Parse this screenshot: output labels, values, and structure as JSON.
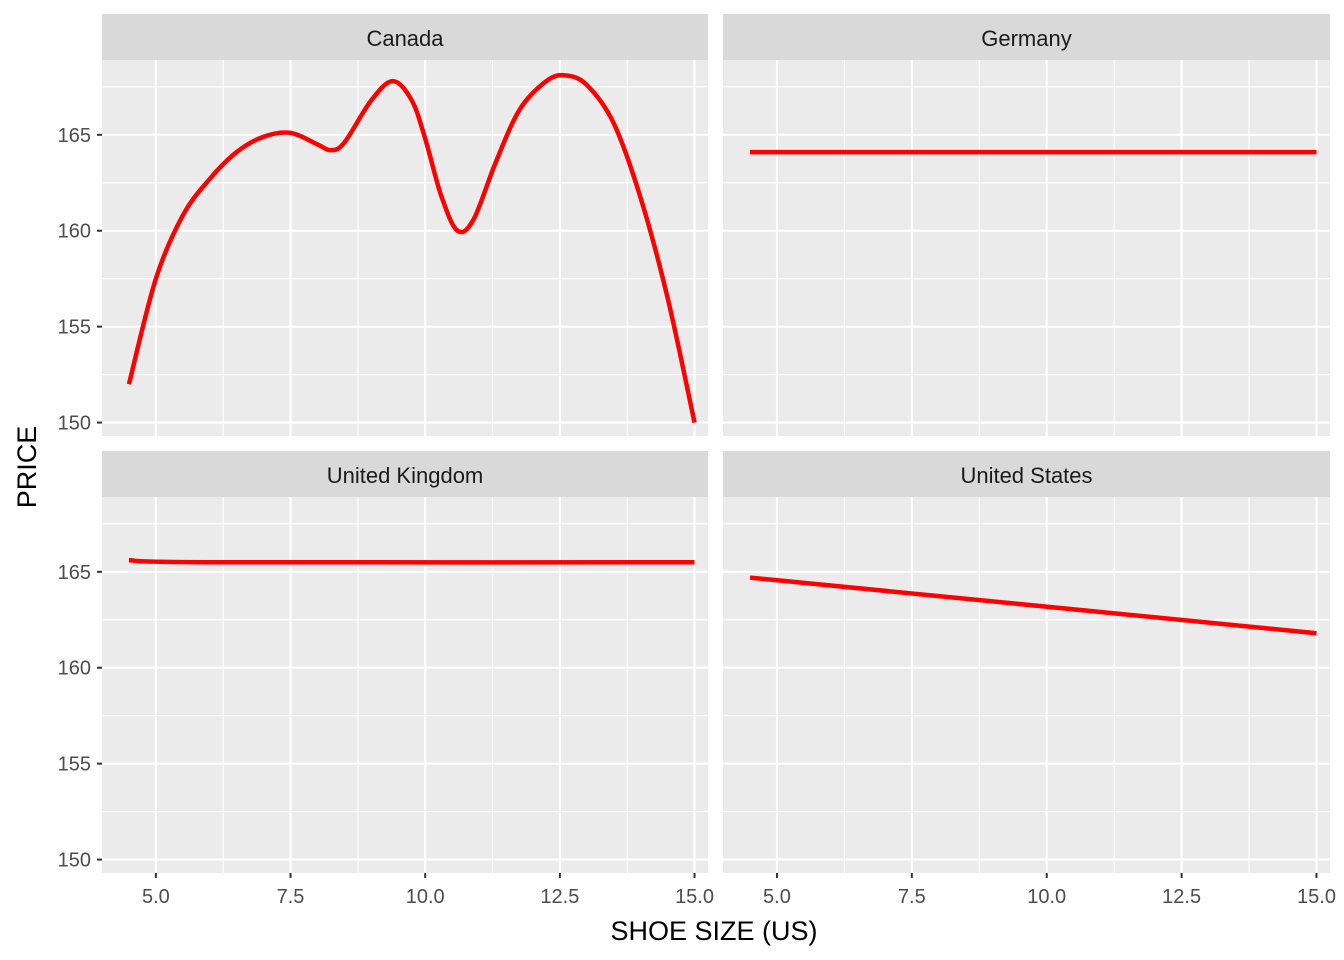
{
  "colors": {
    "series": "#ff0000",
    "panel_background": "#ebebeb",
    "strip_background": "#d9d9d9"
  },
  "chart_data": {
    "type": "line",
    "xlabel": "SHOE SIZE (US)",
    "ylabel": "PRICE",
    "xlim": [
      4.0,
      15.25
    ],
    "ylim": [
      149.3,
      168.9
    ],
    "x_ticks": [
      "5.0",
      "7.5",
      "10.0",
      "12.5",
      "15.0"
    ],
    "y_ticks": [
      "150",
      "155",
      "160",
      "165"
    ],
    "x_tick_values": [
      5.0,
      7.5,
      10.0,
      12.5,
      15.0
    ],
    "y_tick_values": [
      150,
      155,
      160,
      165
    ],
    "grid": true,
    "facets": [
      {
        "label": "Canada",
        "x": [
          4.5,
          5.0,
          5.5,
          6.0,
          6.5,
          7.0,
          7.5,
          8.0,
          8.25,
          8.5,
          9.0,
          9.4,
          9.75,
          10.0,
          10.3,
          10.6,
          10.9,
          11.3,
          11.75,
          12.25,
          12.6,
          13.0,
          13.5,
          14.0,
          14.5,
          15.0
        ],
        "y": [
          152.0,
          157.5,
          160.8,
          162.7,
          164.1,
          164.9,
          165.1,
          164.5,
          164.2,
          164.6,
          166.8,
          167.8,
          166.8,
          164.8,
          161.8,
          160.0,
          160.6,
          163.5,
          166.3,
          167.8,
          168.1,
          167.6,
          165.6,
          161.7,
          156.5,
          150.0
        ]
      },
      {
        "label": "Germany",
        "x": [
          4.5,
          15.0
        ],
        "y": [
          164.1,
          164.1
        ]
      },
      {
        "label": "United Kingdom",
        "x": [
          4.5,
          6.0,
          15.0
        ],
        "y": [
          165.6,
          165.5,
          165.5
        ]
      },
      {
        "label": "United States",
        "x": [
          4.5,
          15.0
        ],
        "y": [
          164.7,
          161.8
        ]
      }
    ]
  }
}
